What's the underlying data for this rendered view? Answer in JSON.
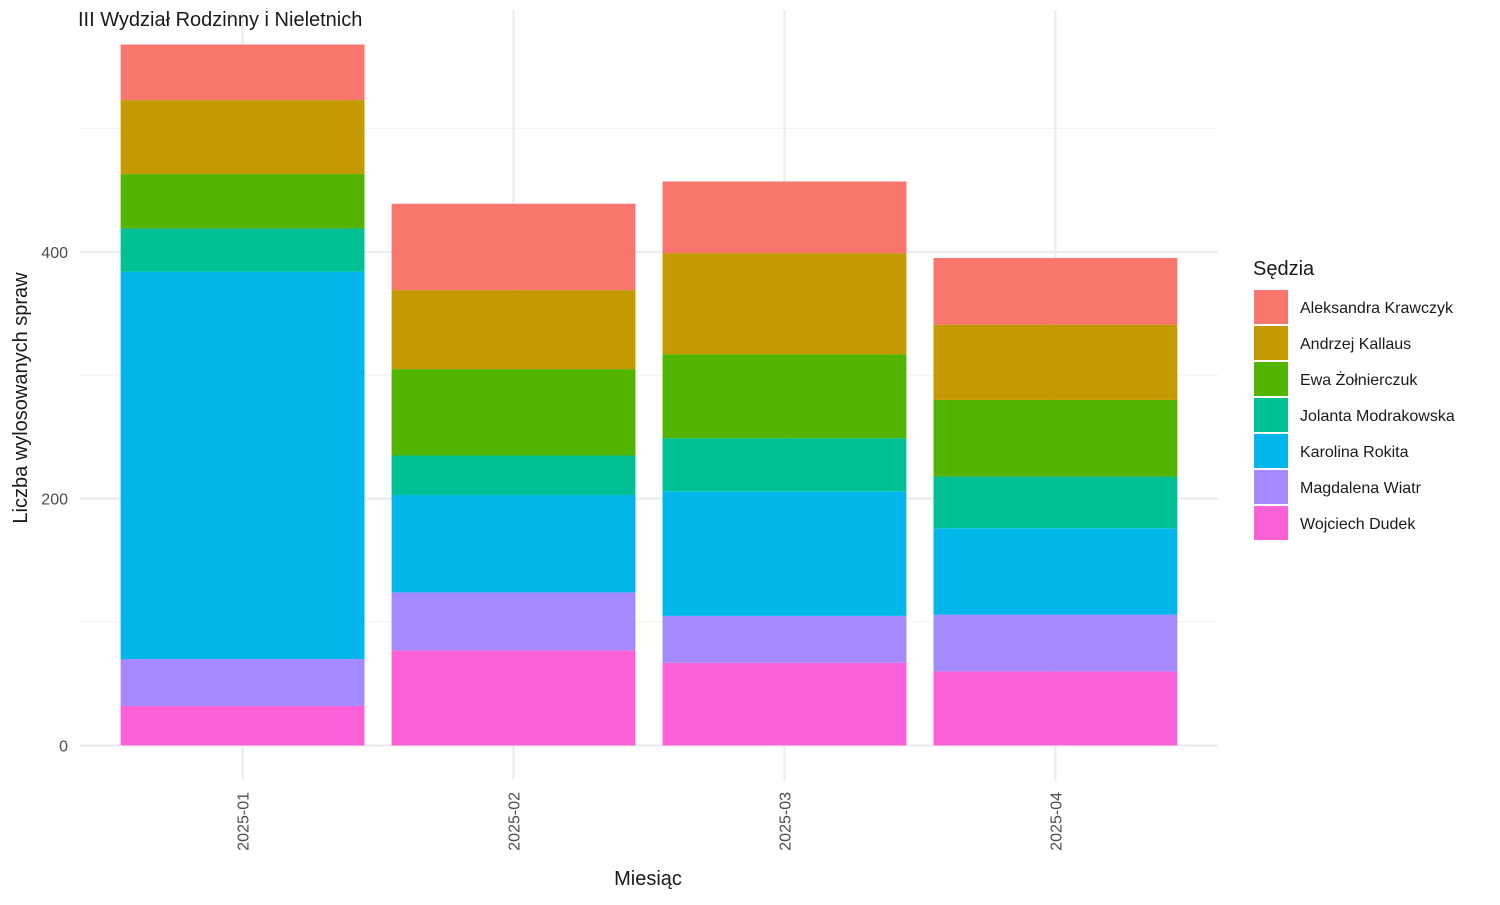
{
  "chart_data": {
    "type": "bar",
    "stacked": true,
    "title": "III Wydział Rodzinny i Nieletnich",
    "xlabel": "Miesiąc",
    "ylabel": "Liczba wylosowanych spraw",
    "categories": [
      "2025-01",
      "2025-02",
      "2025-03",
      "2025-04"
    ],
    "ylim": [
      -28,
      596
    ],
    "yticks": [
      0,
      200,
      400
    ],
    "grid": true,
    "legend": {
      "title": "Sędzia",
      "position": "right"
    },
    "series": [
      {
        "name": "Wojciech Dudek",
        "color": "#FB61D7",
        "values": [
          32,
          77,
          67,
          60
        ]
      },
      {
        "name": "Magdalena Wiatr",
        "color": "#A58AFF",
        "values": [
          38,
          47,
          38,
          46
        ]
      },
      {
        "name": "Karolina Rokita",
        "color": "#00B6EB",
        "values": [
          314,
          79,
          101,
          70
        ]
      },
      {
        "name": "Jolanta Modrakowska",
        "color": "#00C094",
        "values": [
          35,
          32,
          43,
          42
        ]
      },
      {
        "name": "Ewa Żołnierczuk",
        "color": "#53B400",
        "values": [
          44,
          70,
          68,
          62
        ]
      },
      {
        "name": "Andrzej Kallaus",
        "color": "#C49A00",
        "values": [
          60,
          64,
          82,
          61
        ]
      },
      {
        "name": "Aleksandra Krawczyk",
        "color": "#F8766D",
        "values": [
          45,
          70,
          58,
          54
        ]
      }
    ]
  }
}
